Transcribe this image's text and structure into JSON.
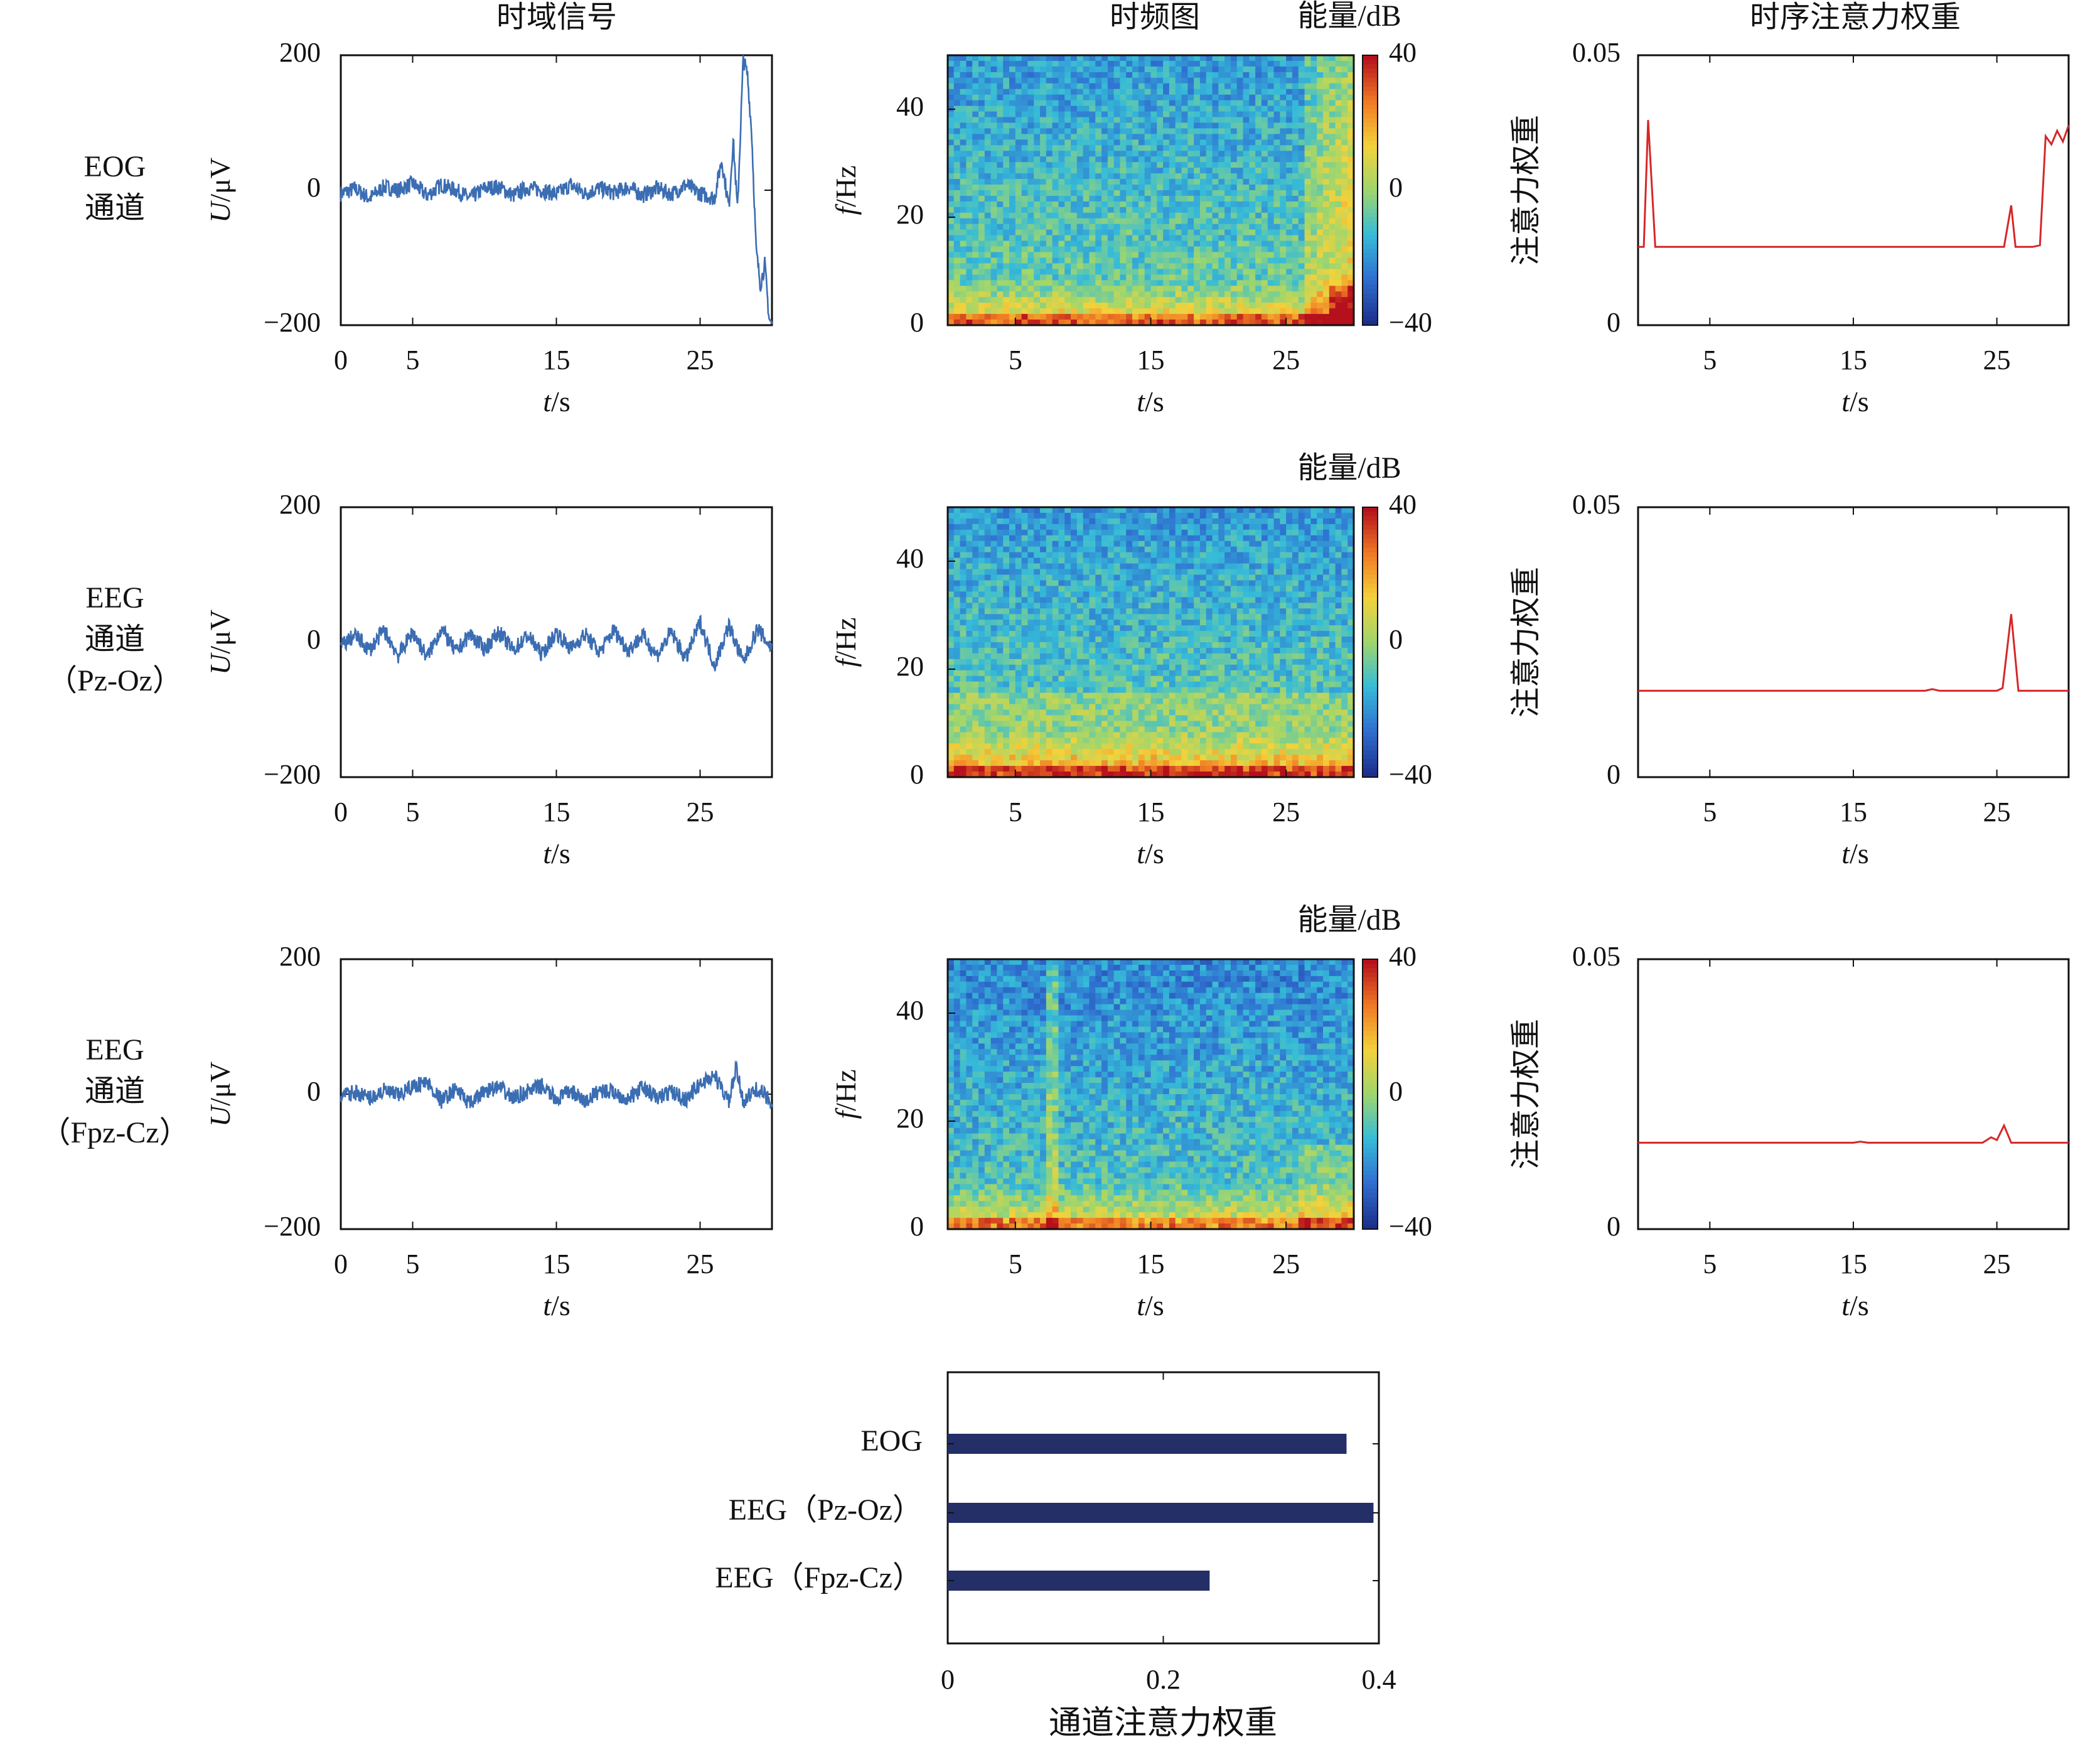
{
  "colors": {
    "signal": "#3b6db2",
    "attention": "#d62728",
    "bar": "#232f66",
    "axis": "#111111",
    "colormap": [
      "#1c2f8c",
      "#2f6fd0",
      "#36bcd8",
      "#9fd66d",
      "#f4d23a",
      "#f07a24",
      "#b5101c"
    ]
  },
  "column_titles": {
    "time": "时域信号",
    "tf": "时频图",
    "att": "时序注意力权重"
  },
  "rows": [
    {
      "label": [
        "EOG",
        "通道"
      ],
      "colorbar_label": "能量/dB",
      "tf_style": "eog",
      "time_signal": {
        "type": "line",
        "xlabel": "t/s",
        "ylabel": "U/μV",
        "xlim": [
          0,
          30
        ],
        "ylim": [
          -200,
          200
        ],
        "xticks": [
          "0",
          "5",
          "15",
          "25"
        ],
        "yticks": [
          "200",
          "0",
          "−200"
        ],
        "x": [
          0,
          1,
          2,
          3,
          4,
          5,
          6,
          7,
          8,
          9,
          10,
          11,
          12,
          13,
          14,
          15,
          16,
          17,
          18,
          19,
          20,
          21,
          22,
          23,
          24,
          25,
          26,
          26.5,
          27,
          27.3,
          27.6,
          28,
          28.3,
          28.6,
          28.9,
          29.2,
          29.5,
          29.8,
          30
        ],
        "y": [
          -5,
          2,
          -12,
          5,
          0,
          10,
          -8,
          8,
          0,
          -12,
          3,
          5,
          -8,
          4,
          0,
          -6,
          8,
          -5,
          3,
          -4,
          5,
          -8,
          3,
          -6,
          8,
          -5,
          -12,
          45,
          -25,
          75,
          -30,
          195,
          170,
          80,
          -90,
          -140,
          -110,
          -190,
          -200
        ]
      },
      "time_frequency": {
        "type": "heatmap",
        "ylabel": "f/Hz",
        "xlabel": "t/s",
        "xlim": [
          0,
          30
        ],
        "ylim": [
          0,
          50
        ],
        "xticks": [
          "5",
          "15",
          "25"
        ],
        "yticks": [
          "40",
          "20",
          "0"
        ],
        "clim": [
          -40,
          40
        ],
        "cticks": [
          "40",
          "0",
          "−40"
        ]
      },
      "attention": {
        "type": "line",
        "ylabel": "注意力权重",
        "xlabel": "t/s",
        "xlim": [
          0,
          30
        ],
        "ylim": [
          0,
          0.05
        ],
        "xticks": [
          "5",
          "15",
          "25"
        ],
        "yticks": [
          "0.05",
          "0"
        ],
        "x": [
          0,
          0.4,
          0.7,
          1.2,
          5,
          10,
          15,
          20,
          25,
          25.5,
          26.0,
          26.3,
          27.5,
          28.0,
          28.4,
          28.8,
          29.2,
          29.6,
          30
        ],
        "y": [
          0.0145,
          0.0145,
          0.038,
          0.0145,
          0.0145,
          0.0145,
          0.0145,
          0.0145,
          0.0145,
          0.0145,
          0.0222,
          0.0145,
          0.0145,
          0.0148,
          0.035,
          0.0335,
          0.036,
          0.034,
          0.037
        ]
      }
    },
    {
      "label": [
        "EEG",
        "通道",
        "（Pz-Oz）"
      ],
      "colorbar_label": "能量/dB",
      "tf_style": "pz",
      "time_signal": {
        "type": "line",
        "xlabel": "t/s",
        "ylabel": "U/μV",
        "xlim": [
          0,
          30
        ],
        "ylim": [
          -200,
          200
        ],
        "xticks": [
          "0",
          "5",
          "15",
          "25"
        ],
        "yticks": [
          "200",
          "0",
          "−200"
        ],
        "x": [
          0,
          1,
          2,
          3,
          4,
          5,
          6,
          7,
          8,
          9,
          10,
          11,
          12,
          13,
          14,
          15,
          16,
          17,
          18,
          19,
          20,
          21,
          22,
          23,
          24,
          25,
          26,
          27,
          28,
          29,
          30
        ],
        "y": [
          -5,
          10,
          -12,
          18,
          -20,
          15,
          -22,
          20,
          -15,
          12,
          -10,
          15,
          -12,
          10,
          -18,
          15,
          -10,
          12,
          -15,
          18,
          -12,
          10,
          -20,
          15,
          -25,
          30,
          -35,
          25,
          -30,
          20,
          -10
        ]
      },
      "time_frequency": {
        "type": "heatmap",
        "ylabel": "f/Hz",
        "xlabel": "t/s",
        "xlim": [
          0,
          30
        ],
        "ylim": [
          0,
          50
        ],
        "xticks": [
          "5",
          "15",
          "25"
        ],
        "yticks": [
          "40",
          "20",
          "0"
        ],
        "clim": [
          -40,
          40
        ],
        "cticks": [
          "40",
          "0",
          "−40"
        ]
      },
      "attention": {
        "type": "line",
        "ylabel": "注意力权重",
        "xlabel": "t/s",
        "xlim": [
          0,
          30
        ],
        "ylim": [
          0,
          0.05
        ],
        "xticks": [
          "5",
          "15",
          "25"
        ],
        "yticks": [
          "0.05",
          "0"
        ],
        "x": [
          0,
          10,
          20,
          20.5,
          21,
          25,
          25.4,
          26.0,
          26.5,
          27,
          30
        ],
        "y": [
          0.016,
          0.016,
          0.016,
          0.0163,
          0.016,
          0.016,
          0.0165,
          0.0302,
          0.016,
          0.016,
          0.016
        ]
      }
    },
    {
      "label": [
        "EEG",
        "通道",
        "（Fpz-Cz）"
      ],
      "colorbar_label": "能量/dB",
      "tf_style": "fpz",
      "time_signal": {
        "type": "line",
        "xlabel": "t/s",
        "ylabel": "U/μV",
        "xlim": [
          0,
          30
        ],
        "ylim": [
          -200,
          200
        ],
        "xticks": [
          "0",
          "5",
          "15",
          "25"
        ],
        "yticks": [
          "200",
          "0",
          "−200"
        ],
        "x": [
          0,
          1,
          2,
          3,
          4,
          5,
          6,
          7,
          8,
          9,
          10,
          11,
          12,
          13,
          14,
          15,
          16,
          17,
          18,
          19,
          20,
          21,
          22,
          23,
          24,
          25,
          26,
          27,
          27.5,
          28,
          29,
          30
        ],
        "y": [
          -4,
          3,
          -6,
          5,
          -2,
          12,
          18,
          -10,
          8,
          -15,
          5,
          10,
          -6,
          4,
          12,
          -8,
          5,
          -12,
          6,
          3,
          -8,
          10,
          -6,
          4,
          -8,
          15,
          28,
          -12,
          38,
          -10,
          8,
          -12
        ]
      },
      "time_frequency": {
        "type": "heatmap",
        "ylabel": "f/Hz",
        "xlabel": "t/s",
        "xlim": [
          0,
          30
        ],
        "ylim": [
          0,
          50
        ],
        "xticks": [
          "5",
          "15",
          "25"
        ],
        "yticks": [
          "40",
          "20",
          "0"
        ],
        "clim": [
          -40,
          40
        ],
        "cticks": [
          "40",
          "0",
          "−40"
        ]
      },
      "attention": {
        "type": "line",
        "ylabel": "注意力权重",
        "xlabel": "t/s",
        "xlim": [
          0,
          30
        ],
        "ylim": [
          0,
          0.05
        ],
        "xticks": [
          "5",
          "15",
          "25"
        ],
        "yticks": [
          "0.05",
          "0"
        ],
        "x": [
          0,
          10,
          15,
          15.5,
          16,
          24,
          24.6,
          25,
          25.5,
          26,
          27,
          30
        ],
        "y": [
          0.016,
          0.016,
          0.016,
          0.0162,
          0.016,
          0.016,
          0.017,
          0.0165,
          0.0192,
          0.016,
          0.016,
          0.016
        ]
      }
    }
  ],
  "chart_data": {
    "type": "bar",
    "orientation": "horizontal",
    "categories": [
      "EOG",
      "EEG（Pz-Oz）",
      "EEG（Fpz-Cz）"
    ],
    "values": [
      0.37,
      0.395,
      0.243
    ],
    "xlabel": "通道注意力权重",
    "xlim": [
      0,
      0.4
    ],
    "xticks": [
      "0",
      "0.2",
      "0.4"
    ]
  }
}
